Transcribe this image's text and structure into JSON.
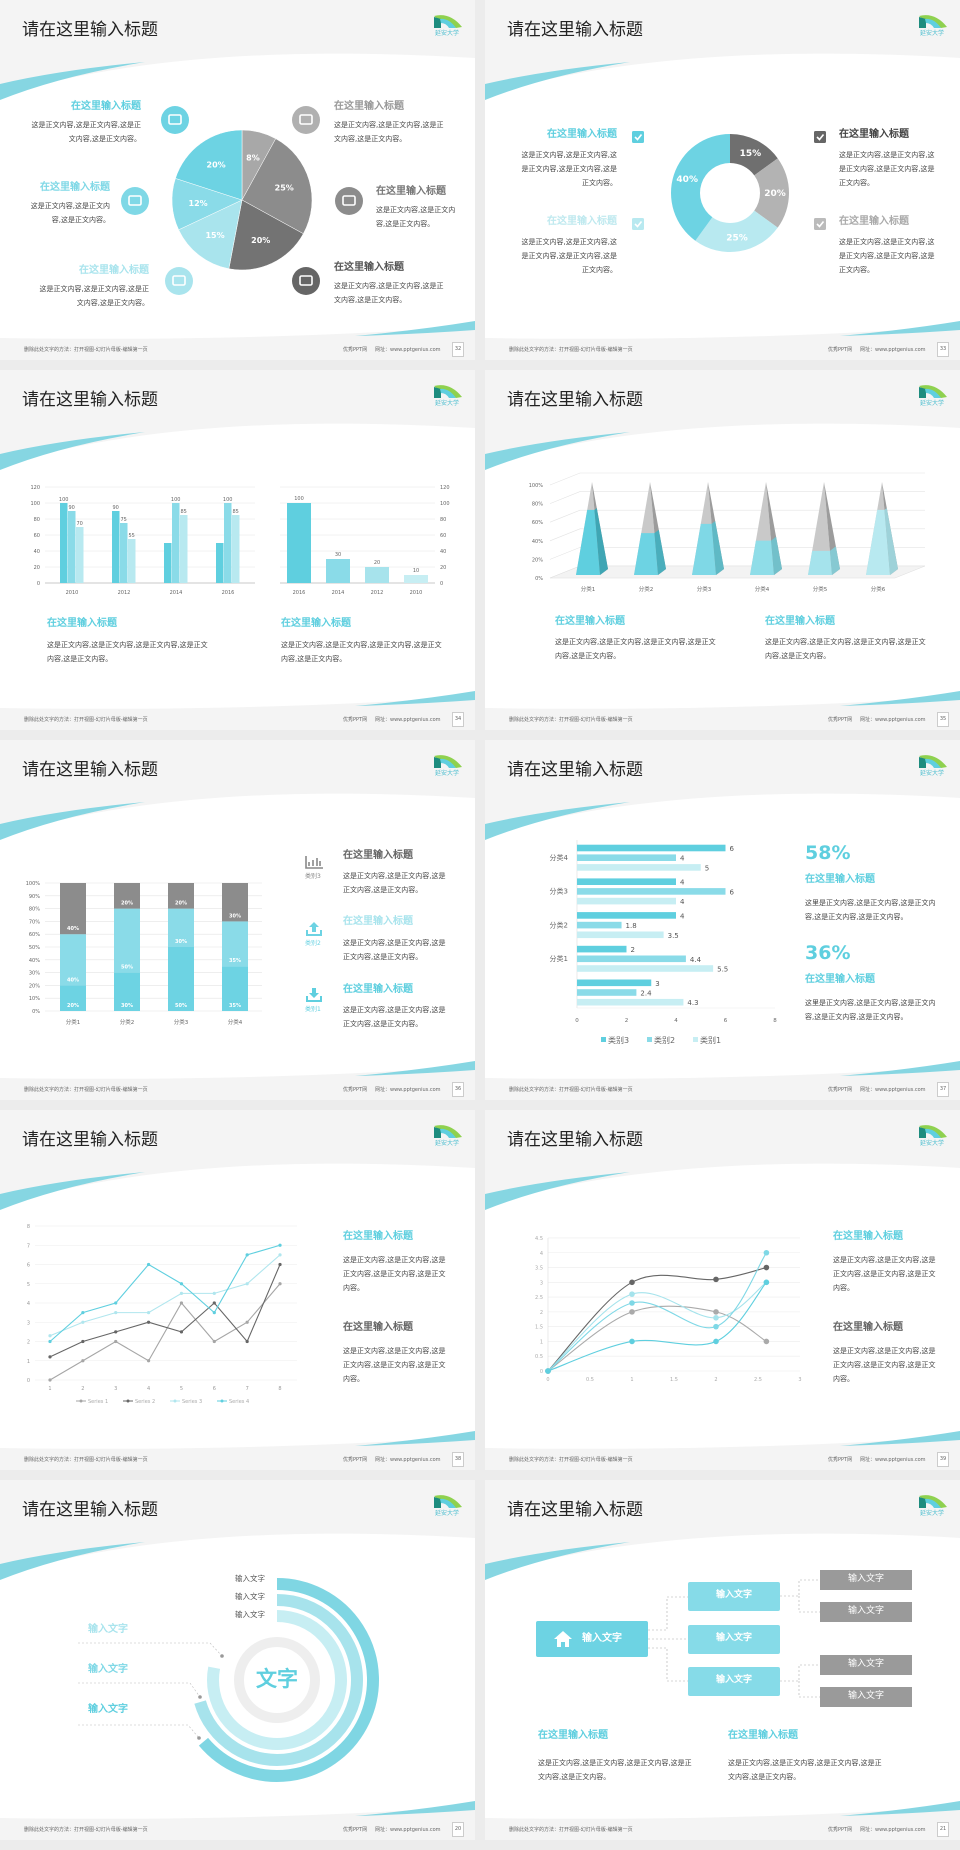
{
  "common": {
    "title": "请在这里输入标题",
    "logo": "延安大学",
    "footer_left": "删除此处文字的方法：打开视图-幻灯片母版-编辑第一页",
    "footer_site": "优秀PPT网",
    "footer_url": "网址：www.pptgenius.com"
  },
  "colors": {
    "cyan": "#5fcfdf",
    "cyan_mid": "#8adbe8",
    "cyan_light": "#c7eef3",
    "gray": "#999999",
    "gray_dark": "#666666"
  },
  "slides": [
    {
      "page": "32",
      "items": [
        {
          "heading": "在这里输入标题",
          "body": "这是正文内容,这是正文内容,这是正文内容,这是正文内容。",
          "icon": "monitor-icon"
        },
        {
          "heading": "在这里输入标题",
          "body": "这是正文内容,这是正文内容,这是正文内容。",
          "icon": "car-icon"
        },
        {
          "heading": "在这里输入标题",
          "body": "这是正文内容,这是正文内容,这是正文内容,这是正文内容。",
          "icon": "book-icon"
        },
        {
          "heading": "在这里输入标题",
          "body": "这是正文内容,这是正文内容,这是正文内容,这是正文内容。",
          "icon": "phone-icon"
        },
        {
          "heading": "在这里输入标题",
          "body": "这是正文内容,这是正文内容,这是正文内容。",
          "icon": "binoculars-icon"
        },
        {
          "heading": "在这里输入标题",
          "body": "这是正文内容,这是正文内容,这是正文内容,这是正文内容。",
          "icon": "bicycle-icon"
        }
      ]
    },
    {
      "page": "33",
      "items": [
        {
          "heading": "在这里输入标题",
          "body": "这是正文内容,这是正文内容,这是正文内容,这是正文内容,这是正文内容。",
          "icon": "checkbox-icon"
        },
        {
          "heading": "在这里输入标题",
          "body": "这是正文内容,这是正文内容,这是正文内容,这是正文内容,这是正文内容。",
          "icon": "checkbox-icon"
        },
        {
          "heading": "在这里输入标题",
          "body": "这是正文内容,这是正文内容,这是正文内容,这是正文内容,这是正文内容。",
          "icon": "checkbox-icon"
        },
        {
          "heading": "在这里输入标题",
          "body": "这是正文内容,这是正文内容,这是正文内容,这是正文内容,这是正文内容。",
          "icon": "checkbox-icon"
        }
      ]
    },
    {
      "page": "34",
      "items": [
        {
          "heading": "在这里输入标题",
          "body": "这是正文内容,这是正文内容,这是正文内容,这是正文内容,这是正文内容。"
        },
        {
          "heading": "在这里输入标题",
          "body": "这是正文内容,这是正文内容,这是正文内容,这是正文内容,这是正文内容。"
        }
      ]
    },
    {
      "page": "35",
      "items": [
        {
          "heading": "在这里输入标题",
          "body": "这是正文内容,这是正文内容,这是正文内容,这是正文内容,这是正文内容。"
        },
        {
          "heading": "在这里输入标题",
          "body": "这是正文内容,这是正文内容,这是正文内容,这是正文内容,这是正文内容。"
        }
      ]
    },
    {
      "page": "36",
      "items": [
        {
          "label": "类别3",
          "heading": "在这里输入标题",
          "body": "这是正文内容,这是正文内容,这是正文内容,这是正文内容。",
          "icon": "bar-chart-icon"
        },
        {
          "label": "类别2",
          "heading": "在这里输入标题",
          "body": "这是正文内容,这是正文内容,这是正文内容,这是正文内容。",
          "icon": "upload-icon"
        },
        {
          "label": "类别1",
          "heading": "在这里输入标题",
          "body": "这是正文内容,这是正文内容,这是正文内容,这是正文内容。",
          "icon": "download-icon"
        }
      ]
    },
    {
      "page": "37",
      "items": [
        {
          "stat": "58%",
          "heading": "在这里输入标题",
          "body": "这里是正文内容,这是正文内容,这是正文内容,这是正文内容,这是正文内容。"
        },
        {
          "stat": "36%",
          "heading": "在这里输入标题",
          "body": "这里是正文内容,这是正文内容,这是正文内容,这是正文内容,这是正文内容。"
        }
      ]
    },
    {
      "page": "38",
      "items": [
        {
          "heading": "在这里输入标题",
          "body": "这是正文内容,这是正文内容,这是正文内容,这是正文内容,这是正文内容。"
        },
        {
          "heading": "在这里输入标题",
          "body": "这是正文内容,这是正文内容,这是正文内容,这是正文内容,这是正文内容。"
        }
      ]
    },
    {
      "page": "39",
      "items": [
        {
          "heading": "在这里输入标题",
          "body": "这是正文内容,这是正文内容,这是正文内容,这是正文内容,这是正文内容。"
        },
        {
          "heading": "在这里输入标题",
          "body": "这是正文内容,这是正文内容,这是正文内容,这是正文内容,这是正文内容。"
        }
      ]
    },
    {
      "page": "20",
      "center": "文字",
      "top_labels": [
        "输入文字",
        "输入文字",
        "输入文字"
      ],
      "left_labels": [
        "输入文字",
        "输入文字",
        "输入文字"
      ]
    },
    {
      "page": "21",
      "root": "输入文字",
      "mids": [
        "输入文字",
        "输入文字",
        "输入文字"
      ],
      "leaves": [
        "输入文字",
        "输入文字",
        "输入文字",
        "输入文字"
      ],
      "items": [
        {
          "heading": "在这里输入标题",
          "body": "这是正文内容,这是正文内容,这是正文内容,这是正文内容,这是正文内容。"
        },
        {
          "heading": "在这里输入标题",
          "body": "这是正文内容,这是正文内容,这是正文内容,这是正文内容,这是正文内容。"
        }
      ]
    }
  ],
  "chart_data": [
    {
      "type": "pie",
      "values": [
        8,
        25,
        20,
        15,
        12,
        20
      ],
      "labels": [
        "8%",
        "25%",
        "20%",
        "15%",
        "12%",
        "20%"
      ],
      "colors": [
        "#a8a8a8",
        "#8c8c8c",
        "#737373",
        "#a9e4ed",
        "#8adbe8",
        "#6dd3e3"
      ]
    },
    {
      "type": "pie",
      "donut": true,
      "values": [
        15,
        20,
        25,
        40
      ],
      "labels": [
        "15%",
        "20%",
        "25%",
        "40%"
      ],
      "colors": [
        "#6f6f6f",
        "#b3b3b3",
        "#b8e9f0",
        "#6dd3e3"
      ]
    },
    {
      "type": "bar",
      "categories": [
        "2010",
        "2012",
        "2014",
        "2016"
      ],
      "ylim": [
        0,
        120
      ],
      "yticks": [
        0,
        20,
        40,
        60,
        80,
        100,
        120
      ],
      "series": [
        {
          "values": [
            100,
            90,
            50,
            50
          ],
          "labels": [
            "100",
            "90",
            "",
            ""
          ]
        },
        {
          "values": [
            90,
            75,
            100,
            100
          ],
          "labels": [
            "90",
            "75",
            "100",
            "100"
          ]
        },
        {
          "values": [
            70,
            55,
            85,
            85
          ],
          "labels": [
            "70",
            "55",
            "85",
            "85"
          ]
        }
      ],
      "colors": [
        "#5fcfdf",
        "#8adbe8",
        "#b8e9f0"
      ]
    },
    {
      "type": "bar",
      "categories": [
        "2016",
        "2014",
        "2012",
        "2010"
      ],
      "values": [
        100,
        30,
        20,
        10
      ],
      "ylim": [
        0,
        120
      ],
      "yticks": [
        0,
        20,
        40,
        60,
        80,
        100,
        120
      ],
      "y_axis": "right",
      "colors": [
        "#5fcfdf",
        "#8adbe8",
        "#a7e3ec",
        "#c7eef3"
      ]
    },
    {
      "type": "bar",
      "style": "3d-pyramid-100%",
      "categories": [
        "分类1",
        "分类2",
        "分类3",
        "分类4",
        "分类5",
        "分类6"
      ],
      "values": [
        70,
        45,
        55,
        37,
        26,
        70
      ],
      "remainder": [
        30,
        55,
        45,
        63,
        74,
        30
      ],
      "yticks": [
        "0%",
        "20%",
        "40%",
        "60%",
        "80%",
        "100%"
      ]
    },
    {
      "type": "bar",
      "style": "stacked-100%",
      "categories": [
        "分类1",
        "分类2",
        "分类3",
        "分类4"
      ],
      "yticks": [
        "0%",
        "10%",
        "20%",
        "30%",
        "40%",
        "50%",
        "60%",
        "70%",
        "80%",
        "90%",
        "100%"
      ],
      "series": [
        {
          "values": [
            20,
            30,
            50,
            35
          ]
        },
        {
          "values": [
            40,
            50,
            30,
            35
          ]
        },
        {
          "values": [
            40,
            20,
            20,
            30
          ]
        }
      ],
      "colors": [
        "#6dd3e3",
        "#8adbe8",
        "#8c8c8c"
      ]
    },
    {
      "type": "bar",
      "orientation": "horizontal",
      "categories": [
        "分类4",
        "分类3",
        "分类2",
        "分类1",
        ""
      ],
      "xlim": [
        0,
        8
      ],
      "xticks": [
        0,
        2,
        4,
        6,
        8
      ],
      "series": [
        {
          "name": "类别3",
          "values": [
            6,
            4,
            4,
            2,
            3
          ]
        },
        {
          "name": "类别2",
          "values": [
            4,
            6,
            1.8,
            4.4,
            2.4
          ]
        },
        {
          "name": "类别1",
          "values": [
            5,
            4,
            3.5,
            5.5,
            4.3
          ]
        }
      ],
      "colors": [
        "#5fcfdf",
        "#8adbe8",
        "#c7eef3"
      ],
      "legend": "bottom"
    },
    {
      "type": "line",
      "x": [
        1,
        2,
        3,
        4,
        5,
        6,
        7,
        8
      ],
      "ylim": [
        0,
        8
      ],
      "yticks": [
        0,
        1,
        2,
        3,
        4,
        5,
        6,
        7,
        8
      ],
      "legend": "bottom",
      "series": [
        {
          "name": "Series 1",
          "values": [
            0,
            1,
            2,
            1,
            4,
            2,
            3,
            5
          ]
        },
        {
          "name": "Series 2",
          "values": [
            1.2,
            2,
            2.5,
            3,
            2.5,
            4,
            2,
            6
          ]
        },
        {
          "name": "Series 3",
          "values": [
            2.3,
            3,
            3.5,
            3.5,
            4.5,
            4.5,
            5,
            6.5
          ]
        },
        {
          "name": "Series 4",
          "values": [
            2,
            3.5,
            4,
            6,
            5,
            3.5,
            6.5,
            7
          ]
        }
      ],
      "colors": [
        "#a6a6a6",
        "#666666",
        "#b0e6ee",
        "#5fcfdf"
      ]
    },
    {
      "type": "scatter",
      "smooth": true,
      "x": [
        0,
        1,
        2,
        2.6
      ],
      "xlim": [
        0,
        3
      ],
      "ylim": [
        0,
        4.5
      ],
      "xticks": [
        0,
        0.5,
        1,
        1.5,
        2,
        2.5,
        3
      ],
      "yticks": [
        0,
        0.5,
        1,
        1.5,
        2,
        2.5,
        3,
        3.5,
        4,
        4.5
      ],
      "series": [
        {
          "values": [
            0,
            3,
            3.1,
            3.5
          ]
        },
        {
          "values": [
            0,
            2,
            2,
            1
          ]
        },
        {
          "values": [
            0,
            2.6,
            1.8,
            3
          ]
        },
        {
          "values": [
            0,
            2.3,
            1.5,
            4
          ]
        },
        {
          "values": [
            0,
            1,
            1,
            3
          ]
        }
      ],
      "colors": [
        "#666666",
        "#aaaaaa",
        "#a5e3ec",
        "#7fd8e6",
        "#5fcfdf"
      ]
    }
  ]
}
